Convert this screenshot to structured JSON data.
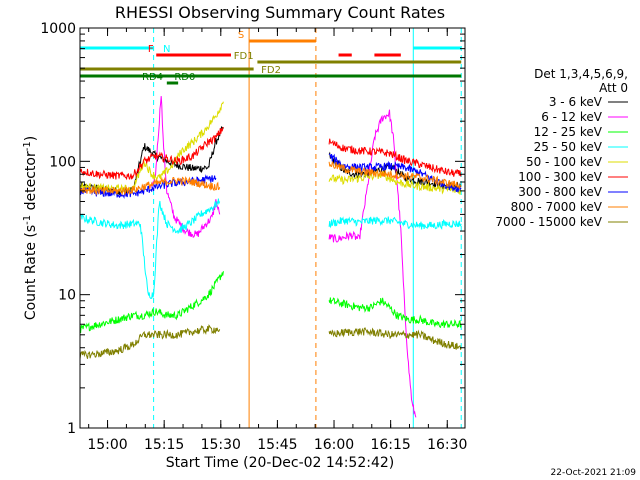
{
  "chart_data": {
    "type": "line",
    "title": "RHESSI Observing Summary Count Rates",
    "xlabel": "Start Time (20-Dec-02 14:52:42)",
    "ylabel": "Count Rate (s",
    "ylabel_sup": "-1",
    "ylabel_rest": " detector",
    "ylabel_sup2": "-1",
    "ylabel_close": ")",
    "x_unit": "minutes after 14:52:42",
    "xlim": [
      0,
      102
    ],
    "ylim": [
      1,
      1000
    ],
    "yscale": "log",
    "x_ticks": [
      {
        "label": "15:00",
        "x": 7.3
      },
      {
        "label": "15:15",
        "x": 22.3
      },
      {
        "label": "15:30",
        "x": 37.3
      },
      {
        "label": "15:45",
        "x": 52.3
      },
      {
        "label": "16:00",
        "x": 67.3
      },
      {
        "label": "16:15",
        "x": 82.3
      },
      {
        "label": "16:30",
        "x": 97.3
      }
    ],
    "y_ticks": [
      {
        "label": "1",
        "y": 1
      },
      {
        "label": "10",
        "y": 10
      },
      {
        "label": "100",
        "y": 100
      },
      {
        "label": "1000",
        "y": 1000
      }
    ],
    "legend_header": [
      "Det 1,3,4,5,6,9,",
      "Att 0"
    ],
    "series": [
      {
        "name": "3 - 6 keV",
        "color": "#000000",
        "segments": [
          [
            [
              0,
              65
            ],
            [
              5,
              62
            ],
            [
              10,
              60
            ],
            [
              14,
              60
            ],
            [
              17,
              130
            ],
            [
              20,
              110
            ],
            [
              25,
              95
            ],
            [
              30,
              88
            ],
            [
              34,
              90
            ],
            [
              36,
              140
            ],
            [
              38,
              180
            ]
          ],
          [
            [
              66,
              110
            ],
            [
              70,
              85
            ],
            [
              73,
              80
            ],
            [
              77,
              82
            ],
            [
              80,
              88
            ],
            [
              83,
              90
            ],
            [
              86,
              75
            ],
            [
              89,
              72
            ],
            [
              92,
              70
            ],
            [
              97,
              66
            ],
            [
              101,
              64
            ]
          ]
        ]
      },
      {
        "name": "6 - 12 keV",
        "color": "#ff00ff",
        "segments": [
          [
            [
              19,
              60
            ],
            [
              20,
              80
            ],
            [
              21,
              200
            ],
            [
              21.5,
              330
            ],
            [
              22,
              150
            ],
            [
              23,
              60
            ],
            [
              25,
              38
            ],
            [
              28,
              30
            ],
            [
              31,
              28
            ],
            [
              33,
              33
            ],
            [
              35,
              38
            ],
            [
              36,
              50
            ],
            [
              37,
              40
            ]
          ],
          [
            [
              66,
              27
            ],
            [
              68,
              26
            ],
            [
              70,
              27
            ],
            [
              72,
              28
            ],
            [
              74,
              26
            ],
            [
              76,
              60
            ],
            [
              78,
              150
            ],
            [
              80,
              210
            ],
            [
              82,
              230
            ],
            [
              83,
              150
            ],
            [
              84,
              70
            ],
            [
              85,
              30
            ],
            [
              86,
              8
            ],
            [
              87,
              3
            ],
            [
              88,
              1.5
            ],
            [
              89,
              1.2
            ]
          ]
        ]
      },
      {
        "name": "12 - 25 keV",
        "color": "#00ff00",
        "segments": [
          [
            [
              0,
              5.5
            ],
            [
              5,
              6
            ],
            [
              10,
              6.5
            ],
            [
              14,
              7
            ],
            [
              17,
              7
            ],
            [
              20,
              7.5
            ],
            [
              23,
              7
            ],
            [
              26,
              7
            ],
            [
              29,
              8
            ],
            [
              32,
              9
            ],
            [
              34,
              10
            ],
            [
              36,
              12
            ],
            [
              38,
              15
            ]
          ],
          [
            [
              66,
              9
            ],
            [
              70,
              8.5
            ],
            [
              74,
              8
            ],
            [
              77,
              8
            ],
            [
              80,
              9
            ],
            [
              82,
              8
            ],
            [
              84,
              7
            ],
            [
              87,
              6.5
            ],
            [
              90,
              6.5
            ],
            [
              94,
              6
            ],
            [
              97,
              6
            ],
            [
              101,
              6
            ]
          ]
        ]
      },
      {
        "name": "25 - 50 keV",
        "color": "#00ffff",
        "segments": [
          [
            [
              0,
              38
            ],
            [
              5,
              35
            ],
            [
              10,
              33
            ],
            [
              14,
              34
            ],
            [
              16,
              34
            ],
            [
              18,
              10
            ],
            [
              19.5,
              10
            ],
            [
              21,
              50
            ],
            [
              23,
              34
            ],
            [
              26,
              30
            ],
            [
              29,
              34
            ],
            [
              32,
              40
            ],
            [
              35,
              45
            ],
            [
              37,
              50
            ]
          ],
          [
            [
              66,
              34
            ],
            [
              70,
              36
            ],
            [
              74,
              35
            ],
            [
              78,
              36
            ],
            [
              82,
              36
            ],
            [
              86,
              34
            ],
            [
              90,
              33
            ],
            [
              94,
              33
            ],
            [
              97,
              34
            ],
            [
              101,
              34
            ]
          ]
        ]
      },
      {
        "name": "50 - 100 keV",
        "color": "#dddd00",
        "segments": [
          [
            [
              0,
              65
            ],
            [
              5,
              63
            ],
            [
              10,
              62
            ],
            [
              14,
              62
            ],
            [
              17,
              100
            ],
            [
              19,
              80
            ],
            [
              21,
              75
            ],
            [
              24,
              90
            ],
            [
              27,
              120
            ],
            [
              30,
              140
            ],
            [
              33,
              170
            ],
            [
              36,
              220
            ],
            [
              38,
              280
            ]
          ],
          [
            [
              66,
              75
            ],
            [
              70,
              72
            ],
            [
              73,
              74
            ],
            [
              76,
              76
            ],
            [
              80,
              80
            ],
            [
              84,
              70
            ],
            [
              88,
              66
            ],
            [
              92,
              64
            ],
            [
              96,
              62
            ],
            [
              101,
              60
            ]
          ]
        ]
      },
      {
        "name": "100 - 300 keV",
        "color": "#ff0000",
        "segments": [
          [
            [
              0,
              85
            ],
            [
              5,
              80
            ],
            [
              10,
              78
            ],
            [
              14,
              78
            ],
            [
              17,
              100
            ],
            [
              20,
              110
            ],
            [
              23,
              105
            ],
            [
              26,
              100
            ],
            [
              30,
              110
            ],
            [
              34,
              140
            ],
            [
              36,
              150
            ],
            [
              38,
              180
            ]
          ],
          [
            [
              66,
              140
            ],
            [
              70,
              125
            ],
            [
              74,
              120
            ],
            [
              78,
              118
            ],
            [
              82,
              115
            ],
            [
              86,
              102
            ],
            [
              90,
              95
            ],
            [
              94,
              88
            ],
            [
              98,
              82
            ],
            [
              101,
              80
            ]
          ]
        ]
      },
      {
        "name": "300 - 800 keV",
        "color": "#0000ff",
        "segments": [
          [
            [
              0,
              60
            ],
            [
              5,
              58
            ],
            [
              10,
              57
            ],
            [
              14,
              57
            ],
            [
              17,
              60
            ],
            [
              20,
              64
            ],
            [
              24,
              68
            ],
            [
              28,
              70
            ],
            [
              32,
              72
            ],
            [
              36,
              75
            ]
          ],
          [
            [
              66,
              110
            ],
            [
              70,
              92
            ],
            [
              74,
              90
            ],
            [
              78,
              90
            ],
            [
              82,
              92
            ],
            [
              86,
              90
            ],
            [
              90,
              82
            ],
            [
              94,
              72
            ],
            [
              98,
              65
            ],
            [
              101,
              62
            ]
          ]
        ]
      },
      {
        "name": "800 - 7000 keV",
        "color": "#ff7f00",
        "segments": [
          [
            [
              0,
              62
            ],
            [
              5,
              60
            ],
            [
              10,
              60
            ],
            [
              14,
              61
            ],
            [
              18,
              66
            ],
            [
              22,
              70
            ],
            [
              26,
              72
            ],
            [
              30,
              70
            ],
            [
              34,
              66
            ],
            [
              37,
              64
            ]
          ],
          [
            [
              66,
              96
            ],
            [
              70,
              88
            ],
            [
              74,
              84
            ],
            [
              78,
              82
            ],
            [
              82,
              80
            ],
            [
              86,
              78
            ],
            [
              90,
              76
            ],
            [
              94,
              72
            ],
            [
              98,
              68
            ],
            [
              101,
              66
            ]
          ]
        ]
      },
      {
        "name": "7000 - 15000 keV",
        "color": "#808000",
        "segments": [
          [
            [
              0,
              3.5
            ],
            [
              5,
              3.6
            ],
            [
              10,
              3.8
            ],
            [
              14,
              4.2
            ],
            [
              17,
              5
            ],
            [
              20,
              5
            ],
            [
              23,
              5
            ],
            [
              26,
              5
            ],
            [
              30,
              5.3
            ],
            [
              34,
              5.5
            ],
            [
              37,
              5.5
            ]
          ],
          [
            [
              66,
              5
            ],
            [
              70,
              5.2
            ],
            [
              74,
              5.3
            ],
            [
              78,
              5.2
            ],
            [
              82,
              5
            ],
            [
              86,
              5
            ],
            [
              90,
              5
            ],
            [
              94,
              4.5
            ],
            [
              98,
              4.2
            ],
            [
              101,
              4
            ]
          ]
        ]
      }
    ],
    "event_lines": [
      {
        "x": 0,
        "color": "#00ffff",
        "style": "solid"
      },
      {
        "x": 19.5,
        "color": "#00ffff",
        "style": "dashed"
      },
      {
        "x": 44.8,
        "color": "#ff7f00",
        "style": "solid"
      },
      {
        "x": 62.5,
        "color": "#ff7f00",
        "style": "dashed"
      },
      {
        "x": 88.3,
        "color": "#00ffff",
        "style": "solid"
      },
      {
        "x": 101,
        "color": "#00ffff",
        "style": "dashed"
      }
    ],
    "flag_bars": [
      {
        "label": "N",
        "color": "#00ffff",
        "label_x": 22,
        "label_side": "right",
        "label_anchor": "start",
        "y": 1,
        "segments": [
          [
            0,
            19.5
          ],
          [
            88.3,
            101
          ]
        ]
      },
      {
        "label": "S",
        "color": "#ff7f00",
        "label_x": 43.5,
        "label_side": "left",
        "label_anchor": "end",
        "y": 0,
        "segments": [
          [
            44.8,
            62.5
          ]
        ]
      },
      {
        "label": "F",
        "color": "#ff0000",
        "label_x": 19.5,
        "label_side": "left",
        "label_anchor": "end",
        "y": 2,
        "segments": [
          [
            20.2,
            40
          ],
          [
            68.5,
            72
          ],
          [
            78,
            85
          ]
        ]
      },
      {
        "label": "FD1",
        "color": "#808000",
        "label_x": 46,
        "label_side": "left",
        "label_anchor": "end",
        "y": 3,
        "segments": [
          [
            47,
            101
          ]
        ]
      },
      {
        "label": "FD2",
        "color": "#808000",
        "label_x": 48,
        "label_side": "right",
        "label_anchor": "start",
        "y": 4,
        "segments": [
          [
            0,
            46
          ]
        ]
      },
      {
        "label": "RD0",
        "color": "#007700",
        "label_x": 25,
        "label_side": "right",
        "label_anchor": "start",
        "y": 5,
        "segments": [
          [
            0,
            101
          ]
        ]
      },
      {
        "label": "RD4",
        "color": "#007700",
        "label_x": 22,
        "label_side": "left",
        "label_anchor": "end",
        "y": 6,
        "segments": [
          [
            23,
            26
          ]
        ]
      }
    ]
  },
  "footer_stamp": "22-Oct-2021 21:09"
}
